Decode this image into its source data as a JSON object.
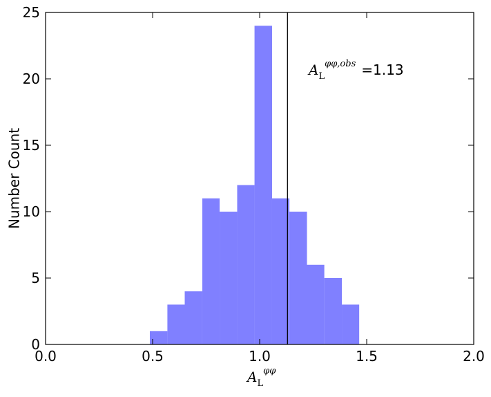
{
  "chart_data": {
    "type": "histogram",
    "bins": [
      0.487,
      0.569,
      0.65,
      0.732,
      0.813,
      0.895,
      0.976,
      1.058,
      1.139,
      1.221,
      1.302,
      1.384,
      1.465
    ],
    "values": [
      1,
      3,
      4,
      11,
      10,
      12,
      24,
      11,
      10,
      6,
      5,
      3
    ],
    "color": "#8080ff",
    "xlabel": {
      "base": "A",
      "sub": "L",
      "sup": "φφ"
    },
    "ylabel": "Number Count",
    "xlim": [
      0,
      2
    ],
    "ylim": [
      0,
      25
    ],
    "xticks": [
      {
        "value": 0,
        "label": "0.0"
      },
      {
        "value": 0.5,
        "label": "0.5"
      },
      {
        "value": 1,
        "label": "1.0"
      },
      {
        "value": 1.5,
        "label": "1.5"
      },
      {
        "value": 2,
        "label": "2.0"
      }
    ],
    "yticks": [
      0,
      5,
      10,
      15,
      20,
      25
    ],
    "vline": 1.13,
    "annotation": {
      "base": "A",
      "sub": "L",
      "sup": "φφ,obs",
      "text": "=1.13"
    }
  }
}
